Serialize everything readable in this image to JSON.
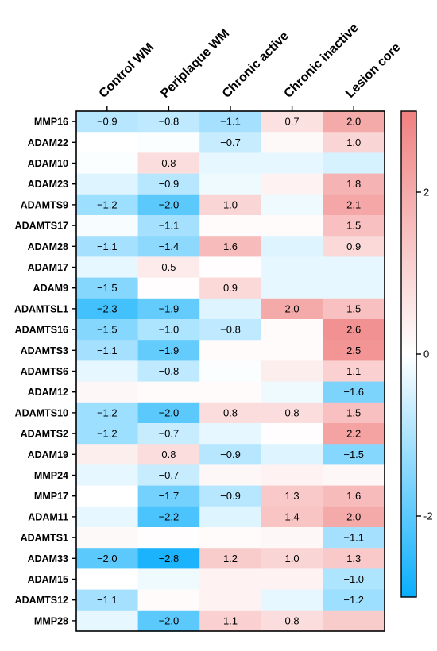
{
  "chart_data": {
    "type": "heatmap",
    "columns": [
      "Control WM",
      "Periplaque WM",
      "Chronic active",
      "Chronic inactive",
      "Lesion core"
    ],
    "rows": [
      "MMP16",
      "ADAM22",
      "ADAM10",
      "ADAM23",
      "ADAMTS9",
      "ADAMTS17",
      "ADAM28",
      "ADAM17",
      "ADAM9",
      "ADAMTSL1",
      "ADAMTS16",
      "ADAMTS3",
      "ADAMTS6",
      "ADAM12",
      "ADAMTS10",
      "ADAMTS2",
      "ADAM19",
      "MMP24",
      "MMP17",
      "ADAM11",
      "ADAMTS1",
      "ADAM33",
      "ADAM15",
      "ADAMTS12",
      "MMP28"
    ],
    "values": [
      [
        -0.9,
        -0.8,
        -1.1,
        0.7,
        2.0
      ],
      [
        0.0,
        -0.05,
        -0.7,
        0.15,
        1.0
      ],
      [
        -0.05,
        0.8,
        -0.3,
        -0.3,
        -0.5
      ],
      [
        -0.4,
        -0.9,
        -0.2,
        0.3,
        1.8
      ],
      [
        -1.2,
        -2.0,
        1.0,
        -0.2,
        2.1
      ],
      [
        -0.1,
        -1.1,
        0.1,
        0.1,
        1.5
      ],
      [
        -1.1,
        -1.4,
        1.6,
        -0.4,
        0.9
      ],
      [
        -0.3,
        0.5,
        0.05,
        -0.3,
        -0.3
      ],
      [
        -1.5,
        0.05,
        0.9,
        -0.3,
        -0.3
      ],
      [
        -2.3,
        -1.9,
        -0.4,
        2.0,
        1.5
      ],
      [
        -1.5,
        -1.0,
        -0.8,
        0.1,
        2.6
      ],
      [
        -1.1,
        -1.9,
        0.1,
        0.1,
        2.5
      ],
      [
        -0.3,
        -0.8,
        -0.05,
        0.4,
        1.1
      ],
      [
        0.2,
        0.1,
        0.1,
        -0.2,
        -1.6
      ],
      [
        -1.2,
        -2.0,
        0.8,
        0.8,
        1.5
      ],
      [
        -1.2,
        -0.7,
        -0.3,
        0.05,
        2.2
      ],
      [
        0.4,
        0.8,
        -0.9,
        -0.4,
        -1.5
      ],
      [
        -0.3,
        -0.7,
        0.2,
        0.3,
        0.2
      ],
      [
        0.0,
        -1.7,
        -0.9,
        1.3,
        1.6
      ],
      [
        -0.3,
        -2.2,
        -0.4,
        1.4,
        2.0
      ],
      [
        0.15,
        0.05,
        0.1,
        0.2,
        -1.1
      ],
      [
        -2.0,
        -2.8,
        1.2,
        1.0,
        1.3
      ],
      [
        0.0,
        -0.2,
        0.3,
        0.3,
        -1.0
      ],
      [
        -1.1,
        0.1,
        0.3,
        -0.3,
        -1.2
      ],
      [
        -0.3,
        -2.0,
        1.1,
        0.8,
        1.2
      ]
    ],
    "labels": [
      [
        "−0.9",
        "−0.8",
        "−1.1",
        "0.7",
        "2.0"
      ],
      [
        "",
        "",
        "−0.7",
        "",
        "1.0"
      ],
      [
        "",
        "0.8",
        "",
        "",
        ""
      ],
      [
        "",
        "−0.9",
        "",
        "",
        "1.8"
      ],
      [
        "−1.2",
        "−2.0",
        "1.0",
        "",
        "2.1"
      ],
      [
        "",
        "−1.1",
        "",
        "",
        "1.5"
      ],
      [
        "−1.1",
        "−1.4",
        "1.6",
        "",
        "0.9"
      ],
      [
        "",
        "0.5",
        "",
        "",
        ""
      ],
      [
        "−1.5",
        "",
        "0.9",
        "",
        ""
      ],
      [
        "−2.3",
        "−1.9",
        "",
        "2.0",
        "1.5"
      ],
      [
        "−1.5",
        "−1.0",
        "−0.8",
        "",
        "2.6"
      ],
      [
        "−1.1",
        "−1.9",
        "",
        "",
        "2.5"
      ],
      [
        "",
        "−0.8",
        "",
        "",
        "1.1"
      ],
      [
        "",
        "",
        "",
        "",
        "−1.6"
      ],
      [
        "−1.2",
        "−2.0",
        "0.8",
        "0.8",
        "1.5"
      ],
      [
        "−1.2",
        "−0.7",
        "",
        "",
        "2.2"
      ],
      [
        "",
        "0.8",
        "−0.9",
        "",
        "−1.5"
      ],
      [
        "",
        "−0.7",
        "",
        "",
        ""
      ],
      [
        "",
        "−1.7",
        "−0.9",
        "1.3",
        "1.6"
      ],
      [
        "",
        "−2.2",
        "",
        "1.4",
        "2.0"
      ],
      [
        "",
        "",
        "",
        "",
        "−1.1"
      ],
      [
        "−2.0",
        "−2.8",
        "1.2",
        "1.0",
        "1.3"
      ],
      [
        "",
        "",
        "",
        "",
        "−1.0"
      ],
      [
        "−1.1",
        "",
        "",
        "",
        "−1.2"
      ],
      [
        "",
        "−2.0",
        "1.1",
        "0.8",
        ""
      ]
    ],
    "colorbar": {
      "range": [
        -3,
        3
      ],
      "ticks": [
        2,
        0,
        -2
      ],
      "tick_labels": [
        "2",
        "0",
        "-2"
      ],
      "colors": {
        "low": "#0aaefc",
        "mid": "#ffffff",
        "high": "#f08080"
      }
    }
  }
}
